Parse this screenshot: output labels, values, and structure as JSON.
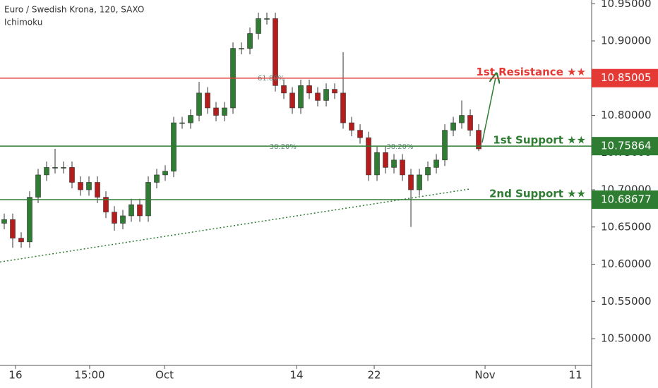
{
  "chart_data": {
    "type": "candlestick",
    "title": "Euro / Swedish Krona, 120, SAXO",
    "subtitle": "Ichimoku",
    "up_color": "#2e7d32",
    "down_color": "#b71c1c",
    "open": [
      10.655,
      10.66,
      10.635,
      10.63,
      10.69,
      10.72,
      10.73,
      10.73,
      10.73,
      10.71,
      10.7,
      10.71,
      10.69,
      10.67,
      10.655,
      10.665,
      10.68,
      10.665,
      10.71,
      10.72,
      10.725,
      10.79,
      10.79,
      10.8,
      10.83,
      10.81,
      10.8,
      10.81,
      10.89,
      10.89,
      10.91,
      10.93,
      10.93,
      10.84,
      10.83,
      10.81,
      10.84,
      10.83,
      10.82,
      10.835,
      10.83,
      10.79,
      10.78,
      10.77,
      10.72,
      10.75,
      10.73,
      10.74,
      10.72,
      10.7,
      10.72,
      10.73,
      10.74,
      10.78,
      10.79,
      10.8,
      10.78
    ],
    "high": [
      10.668,
      10.668,
      10.643,
      10.698,
      10.728,
      10.738,
      10.755,
      10.738,
      10.738,
      10.718,
      10.718,
      10.718,
      10.698,
      10.678,
      10.673,
      10.688,
      10.688,
      10.718,
      10.728,
      10.733,
      10.798,
      10.798,
      10.808,
      10.845,
      10.838,
      10.818,
      10.818,
      10.898,
      10.898,
      10.918,
      10.938,
      10.938,
      10.938,
      10.848,
      10.838,
      10.848,
      10.848,
      10.838,
      10.843,
      10.843,
      10.885,
      10.798,
      10.788,
      10.778,
      10.758,
      10.758,
      10.748,
      10.748,
      10.728,
      10.728,
      10.738,
      10.748,
      10.788,
      10.798,
      10.82,
      10.808,
      10.788
    ],
    "low": [
      10.647,
      10.622,
      10.622,
      10.622,
      10.682,
      10.712,
      10.722,
      10.722,
      10.702,
      10.692,
      10.692,
      10.682,
      10.662,
      10.645,
      10.647,
      10.657,
      10.657,
      10.657,
      10.702,
      10.712,
      10.717,
      10.782,
      10.782,
      10.792,
      10.802,
      10.792,
      10.792,
      10.802,
      10.882,
      10.882,
      10.902,
      10.922,
      10.832,
      10.822,
      10.802,
      10.802,
      10.822,
      10.812,
      10.812,
      10.822,
      10.782,
      10.772,
      10.762,
      10.712,
      10.712,
      10.722,
      10.722,
      10.712,
      10.65,
      10.692,
      10.712,
      10.722,
      10.732,
      10.772,
      10.782,
      10.772,
      10.752
    ],
    "close": [
      10.66,
      10.635,
      10.63,
      10.69,
      10.72,
      10.73,
      10.73,
      10.73,
      10.71,
      10.7,
      10.71,
      10.69,
      10.67,
      10.655,
      10.665,
      10.68,
      10.665,
      10.71,
      10.72,
      10.725,
      10.79,
      10.79,
      10.8,
      10.83,
      10.81,
      10.8,
      10.81,
      10.89,
      10.89,
      10.91,
      10.93,
      10.93,
      10.84,
      10.83,
      10.81,
      10.84,
      10.83,
      10.82,
      10.835,
      10.83,
      10.79,
      10.78,
      10.77,
      10.72,
      10.75,
      10.73,
      10.74,
      10.72,
      10.7,
      10.72,
      10.73,
      10.74,
      10.78,
      10.79,
      10.8,
      10.78,
      10.755
    ],
    "xlim": [
      -0.5,
      69.33
    ],
    "xticks": [
      {
        "value": 1.33,
        "label": "16"
      },
      {
        "value": 10.08,
        "label": "15:00"
      },
      {
        "value": 18.92,
        "label": "Oct"
      },
      {
        "value": 34.5,
        "label": "14"
      },
      {
        "value": 43.67,
        "label": "22"
      },
      {
        "value": 56.75,
        "label": "Nov"
      },
      {
        "value": 67.42,
        "label": "11"
      }
    ],
    "ylim": [
      10.464,
      10.955
    ],
    "yticks": [
      {
        "value": 10.5,
        "label": "10.50000"
      },
      {
        "value": 10.55,
        "label": "10.55000"
      },
      {
        "value": 10.6,
        "label": "10.60000"
      },
      {
        "value": 10.65,
        "label": "10.65000"
      },
      {
        "value": 10.7,
        "label": "10.70000"
      },
      {
        "value": 10.75,
        "label": "10.75000"
      },
      {
        "value": 10.8,
        "label": "10.80000"
      },
      {
        "value": 10.85,
        "label": "10.85000"
      },
      {
        "value": 10.9,
        "label": "10.90000"
      },
      {
        "value": 10.95,
        "label": "10.95000"
      }
    ],
    "levels": [
      {
        "name": "1st Resistance ★★",
        "value": 10.85005,
        "color": "#e53935"
      },
      {
        "name": "1st Support ★★",
        "value": 10.75864,
        "color": "#2e7d32"
      },
      {
        "name": "2nd Support ★★",
        "value": 10.68677,
        "color": "#2e7d32"
      }
    ],
    "annotations": [
      {
        "text": "61.80%",
        "x": 31.5,
        "y": 10.85
      },
      {
        "text": "38.20%",
        "x": 32.9,
        "y": 10.758
      },
      {
        "text": "38.20%",
        "x": 46.7,
        "y": 10.758
      }
    ],
    "trendline": {
      "x": [
        -0.5,
        54.9
      ],
      "y": [
        10.603,
        10.701
      ],
      "color": "#2e7d32"
    }
  }
}
